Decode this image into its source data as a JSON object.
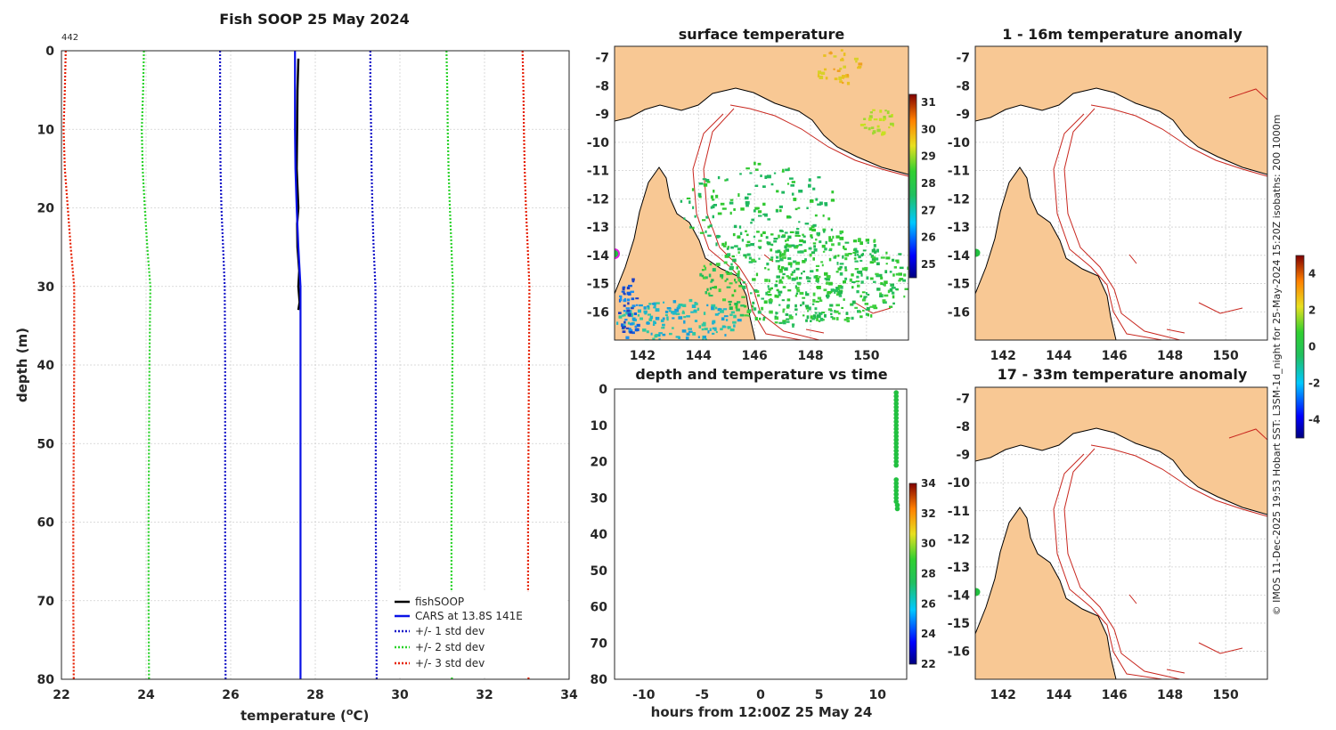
{
  "colors": {
    "land": "#f8c894",
    "isobath": "#c8261e",
    "coast": "#000000",
    "fishSOOP": "#000000",
    "cars": "#0a12e6",
    "std1": "#1414c8",
    "std2": "#28d228",
    "std3": "#e61e00",
    "marker_green": "#22c040",
    "marker_magenta": "#e020e0"
  },
  "side_credit": "© IMOS 11-Dec-2025 19:53 Hobart SST: L3SM-1d_night for 25-May-2024 15:20Z isobaths: 200  1000m",
  "chart_data": [
    {
      "type": "line",
      "title": "Fish SOOP 25 May 2024",
      "annotation": "442",
      "xlabel": "temperature (°C)",
      "ylabel": "depth (m)",
      "xlim": [
        22,
        34
      ],
      "ylim": [
        80,
        0
      ],
      "xticks": [
        22,
        24,
        26,
        28,
        30,
        32,
        34
      ],
      "yticks": [
        0,
        10,
        20,
        30,
        40,
        50,
        60,
        70,
        80
      ],
      "legend_position": "bottom-right",
      "series": [
        {
          "name": "fishSOOP",
          "style": "solid",
          "depth": [
            1,
            5,
            10,
            15,
            20,
            22,
            25,
            28,
            30,
            32,
            33
          ],
          "temp": [
            27.6,
            27.58,
            27.57,
            27.56,
            27.6,
            27.57,
            27.58,
            27.62,
            27.6,
            27.63,
            27.6
          ]
        },
        {
          "name": "CARS at 13.8S 141E",
          "style": "solid",
          "depth": [
            0,
            5,
            10,
            15,
            20,
            25,
            30,
            40,
            50,
            60,
            70,
            80
          ],
          "temp": [
            27.52,
            27.52,
            27.52,
            27.53,
            27.56,
            27.6,
            27.65,
            27.65,
            27.65,
            27.65,
            27.65,
            27.65
          ]
        },
        {
          "name": "+/- 1 std dev",
          "style": "dotted",
          "depth": [
            0,
            5,
            10,
            15,
            20,
            25,
            30,
            40,
            50,
            60,
            70,
            80
          ],
          "lower": [
            25.75,
            25.75,
            25.75,
            25.76,
            25.78,
            25.82,
            25.86,
            25.87,
            25.87,
            25.87,
            25.87,
            25.88
          ],
          "upper": [
            29.3,
            29.3,
            29.32,
            29.33,
            29.35,
            29.38,
            29.42,
            29.43,
            29.43,
            29.43,
            29.44,
            29.45
          ]
        },
        {
          "name": "+/- 2 std dev",
          "style": "dotted",
          "depth": [
            0,
            5,
            10,
            15,
            20,
            25,
            30,
            40,
            50,
            60,
            70,
            80
          ],
          "lower": [
            23.95,
            23.93,
            23.9,
            23.92,
            23.97,
            24.03,
            24.1,
            24.08,
            24.07,
            24.06,
            24.06,
            24.07
          ],
          "upper": [
            31.1,
            31.12,
            31.13,
            31.15,
            31.18,
            31.22,
            31.25,
            31.24,
            31.23,
            31.22,
            31.22,
            31.23
          ]
        },
        {
          "name": "+/- 3 std dev",
          "style": "dotted",
          "depth": [
            0,
            5,
            10,
            15,
            20,
            25,
            30,
            40,
            50,
            60,
            70,
            80
          ],
          "lower": [
            22.1,
            22.08,
            22.05,
            22.08,
            22.15,
            22.22,
            22.3,
            22.3,
            22.29,
            22.28,
            22.28,
            22.29
          ],
          "upper": [
            32.9,
            32.92,
            32.93,
            32.95,
            32.98,
            33.02,
            33.06,
            33.05,
            33.04,
            33.03,
            33.03,
            33.04
          ]
        }
      ]
    },
    {
      "type": "heatmap",
      "title": "surface temperature",
      "xticks": [
        142,
        144,
        146,
        148,
        150
      ],
      "yticks": [
        -7,
        -8,
        -9,
        -10,
        -11,
        -12,
        -13,
        -14,
        -15,
        -16
      ],
      "xlim": [
        141,
        151.5
      ],
      "ylim": [
        -17,
        -6.6
      ],
      "colorbar": {
        "ticks": [
          25,
          26,
          27,
          28,
          29,
          30,
          31
        ],
        "range": [
          24.5,
          31.3
        ]
      }
    },
    {
      "type": "scatter",
      "title": "depth and temperature vs time",
      "xlabel": "hours from 12:00Z 25 May 24",
      "ylabel": "",
      "xlim": [
        -12.5,
        12.5
      ],
      "ylim": [
        80,
        0
      ],
      "xticks": [
        -10,
        -5,
        0,
        5,
        10
      ],
      "yticks": [
        0,
        10,
        20,
        30,
        40,
        50,
        60,
        70,
        80
      ],
      "points": {
        "hours": [
          11.6,
          11.6,
          11.6,
          11.6,
          11.6,
          11.6,
          11.6,
          11.6,
          11.6,
          11.6,
          11.6,
          11.6,
          11.6,
          11.6,
          11.6,
          11.6,
          11.6,
          11.6,
          11.6,
          11.6,
          11.6,
          11.6,
          11.6,
          11.6,
          11.6,
          11.6,
          11.6,
          11.6,
          11.7,
          11.7
        ],
        "depth": [
          1,
          2,
          3,
          4,
          5,
          6,
          7,
          8,
          9,
          10,
          11,
          12,
          13,
          14,
          15,
          16,
          17,
          18,
          19,
          20,
          21,
          25,
          26,
          27,
          28,
          29,
          30,
          31,
          32,
          33
        ],
        "temp": [
          27.6,
          27.6,
          27.6,
          27.6,
          27.6,
          27.6,
          27.6,
          27.6,
          27.6,
          27.6,
          27.6,
          27.6,
          27.6,
          27.6,
          27.6,
          27.6,
          27.6,
          27.6,
          27.6,
          27.6,
          27.6,
          27.6,
          27.6,
          27.6,
          27.6,
          27.6,
          27.6,
          27.6,
          27.6,
          27.6
        ]
      },
      "colorbar": {
        "ticks": [
          22,
          24,
          26,
          28,
          30,
          32,
          34
        ],
        "range": [
          22,
          34
        ]
      }
    },
    {
      "type": "heatmap",
      "title": "1 - 16m temperature anomaly",
      "xticks": [
        142,
        144,
        146,
        148,
        150
      ],
      "yticks": [
        -7,
        -8,
        -9,
        -10,
        -11,
        -12,
        -13,
        -14,
        -15,
        -16
      ],
      "xlim": [
        141,
        151.5
      ],
      "ylim": [
        -17,
        -6.6
      ],
      "colorbar": {
        "ticks": [
          -4,
          -2,
          0,
          2,
          4
        ],
        "range": [
          -5,
          5
        ]
      },
      "marker": {
        "lon": 141.0,
        "lat": -13.8
      }
    },
    {
      "type": "heatmap",
      "title": "17 - 33m temperature anomaly",
      "xticks": [
        142,
        144,
        146,
        148,
        150
      ],
      "yticks": [
        -7,
        -8,
        -9,
        -10,
        -11,
        -12,
        -13,
        -14,
        -15,
        -16
      ],
      "xlim": [
        141,
        151.5
      ],
      "ylim": [
        -17,
        -6.6
      ],
      "marker": {
        "lon": 141.0,
        "lat": -13.8
      }
    }
  ]
}
